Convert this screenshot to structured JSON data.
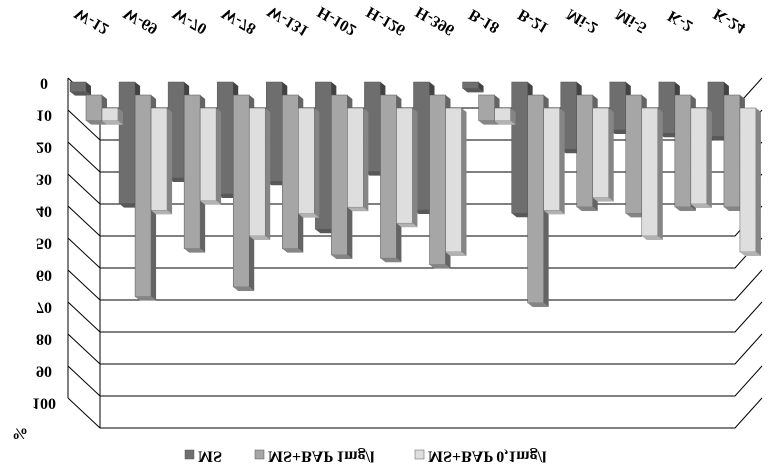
{
  "chart_data": {
    "type": "bar3d",
    "y_label": "%",
    "categories": [
      "W-12",
      "W-69",
      "W-70",
      "W-78",
      "W-131",
      "H-102",
      "H-126",
      "H-396",
      "B-18",
      "B-21",
      "Mi-2",
      "Mi-5",
      "K-2",
      "K-24"
    ],
    "series": [
      {
        "name": "MS",
        "color": "#6e6e6e",
        "values": [
          3,
          38,
          30,
          35,
          31,
          46,
          28,
          40,
          2,
          41,
          21,
          15,
          16,
          17
        ]
      },
      {
        "name": "MS+BAP 1mg/l",
        "color": "#a6a6a6",
        "values": [
          8,
          63,
          48,
          60,
          48,
          50,
          51,
          53,
          8,
          65,
          35,
          37,
          35,
          35
        ]
      },
      {
        "name": "MS+BAP 0,1mg/l",
        "color": "#dedede",
        "values": [
          4,
          32,
          29,
          40,
          33,
          31,
          36,
          45,
          4,
          32,
          28,
          40,
          30,
          45
        ]
      }
    ],
    "ylim": [
      0,
      100
    ],
    "yticks": [
      0,
      10,
      20,
      30,
      40,
      50,
      60,
      70,
      80,
      90,
      100
    ],
    "inverted": true,
    "grid": true
  }
}
